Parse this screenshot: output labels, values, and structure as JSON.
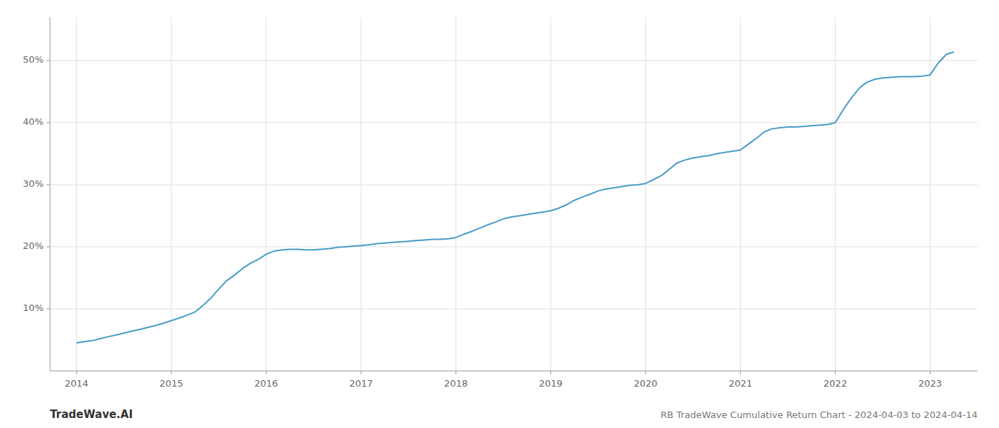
{
  "chart_data": {
    "type": "line",
    "title": "RB TradeWave Cumulative Return Chart - 2024-04-03 to 2024-04-14",
    "annotations": [
      "TradeWave.AI"
    ],
    "color": "#4a9cc7",
    "grid": true,
    "x": [
      2014.0,
      2014.08,
      2014.17,
      2014.25,
      2014.33,
      2014.42,
      2014.5,
      2014.58,
      2014.67,
      2014.75,
      2014.83,
      2014.92,
      2015.0,
      2015.08,
      2015.17,
      2015.25,
      2015.33,
      2015.42,
      2015.5,
      2015.58,
      2015.67,
      2015.75,
      2015.83,
      2015.92,
      2016.0,
      2016.08,
      2016.17,
      2016.25,
      2016.33,
      2016.42,
      2016.5,
      2016.58,
      2016.67,
      2016.75,
      2016.83,
      2016.92,
      2017.0,
      2017.08,
      2017.17,
      2017.25,
      2017.33,
      2017.42,
      2017.5,
      2017.58,
      2017.67,
      2017.75,
      2017.83,
      2017.92,
      2018.0,
      2018.08,
      2018.17,
      2018.25,
      2018.33,
      2018.42,
      2018.5,
      2018.58,
      2018.67,
      2018.75,
      2018.83,
      2018.92,
      2019.0,
      2019.08,
      2019.17,
      2019.25,
      2019.33,
      2019.42,
      2019.5,
      2019.58,
      2019.67,
      2019.75,
      2019.83,
      2019.92,
      2020.0,
      2020.08,
      2020.17,
      2020.25,
      2020.33,
      2020.42,
      2020.5,
      2020.58,
      2020.67,
      2020.75,
      2020.83,
      2020.92,
      2021.0,
      2021.08,
      2021.17,
      2021.25,
      2021.33,
      2021.42,
      2021.5,
      2021.58,
      2021.67,
      2021.75,
      2021.83,
      2021.92,
      2022.0,
      2022.08,
      2022.17,
      2022.25,
      2022.33,
      2022.42,
      2022.5,
      2022.58,
      2022.67,
      2022.75,
      2022.83,
      2022.92,
      2023.0,
      2023.08,
      2023.17,
      2023.25
    ],
    "values": [
      4.5,
      4.7,
      4.9,
      5.2,
      5.5,
      5.8,
      6.1,
      6.4,
      6.7,
      7.0,
      7.3,
      7.7,
      8.1,
      8.5,
      9.0,
      9.5,
      10.5,
      11.8,
      13.2,
      14.5,
      15.5,
      16.5,
      17.3,
      18.0,
      18.8,
      19.3,
      19.5,
      19.6,
      19.6,
      19.5,
      19.5,
      19.6,
      19.7,
      19.9,
      20.0,
      20.1,
      20.2,
      20.3,
      20.5,
      20.6,
      20.7,
      20.8,
      20.9,
      21.0,
      21.1,
      21.2,
      21.2,
      21.3,
      21.5,
      22.0,
      22.5,
      23.0,
      23.5,
      24.0,
      24.5,
      24.8,
      25.0,
      25.2,
      25.4,
      25.6,
      25.8,
      26.2,
      26.8,
      27.5,
      28.0,
      28.5,
      29.0,
      29.3,
      29.5,
      29.7,
      29.9,
      30.0,
      30.2,
      30.8,
      31.5,
      32.5,
      33.5,
      34.0,
      34.3,
      34.5,
      34.7,
      35.0,
      35.2,
      35.4,
      35.6,
      36.5,
      37.5,
      38.5,
      39.0,
      39.2,
      39.3,
      39.3,
      39.4,
      39.5,
      39.6,
      39.7,
      40.0,
      42.0,
      44.0,
      45.5,
      46.5,
      47.0,
      47.2,
      47.3,
      47.4,
      47.4,
      47.4,
      47.5,
      47.7,
      49.5,
      51.0,
      51.4
    ],
    "xlim": [
      2013.72,
      2023.5
    ],
    "ylim": [
      0,
      57
    ],
    "xticks": [
      2014,
      2015,
      2016,
      2017,
      2018,
      2019,
      2020,
      2021,
      2022,
      2023
    ],
    "yticks": [
      {
        "value": 10,
        "label": "10%"
      },
      {
        "value": 20,
        "label": "20%"
      },
      {
        "value": 30,
        "label": "30%"
      },
      {
        "value": 40,
        "label": "40%"
      },
      {
        "value": 50,
        "label": "50%"
      }
    ]
  }
}
